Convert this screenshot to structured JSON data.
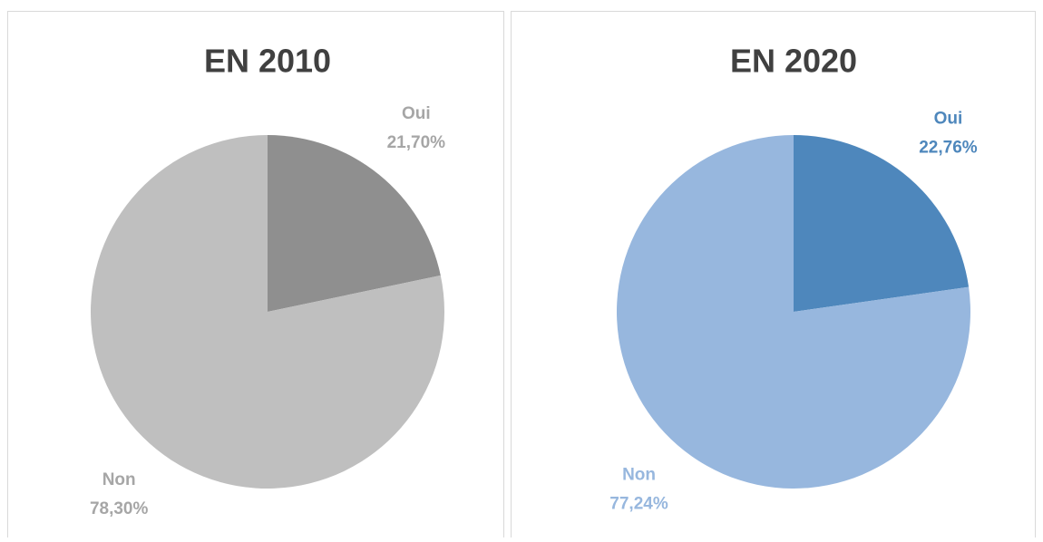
{
  "chart_data": [
    {
      "type": "pie",
      "title": "EN 2010",
      "categories": [
        "Oui",
        "Non"
      ],
      "values": [
        21.7,
        78.3
      ],
      "value_labels": [
        "21,70%",
        "78,30%"
      ],
      "colors": [
        "#8f8f8f",
        "#bfbfbf"
      ],
      "label_colors": [
        "#a6a6a6",
        "#a6a6a6"
      ]
    },
    {
      "type": "pie",
      "title": "EN 2020",
      "categories": [
        "Oui",
        "Non"
      ],
      "values": [
        22.76,
        77.24
      ],
      "value_labels": [
        "22,76%",
        "77,24%"
      ],
      "colors": [
        "#4e87bc",
        "#97b7de"
      ],
      "label_colors": [
        "#4e87bc",
        "#97b7de"
      ]
    }
  ]
}
